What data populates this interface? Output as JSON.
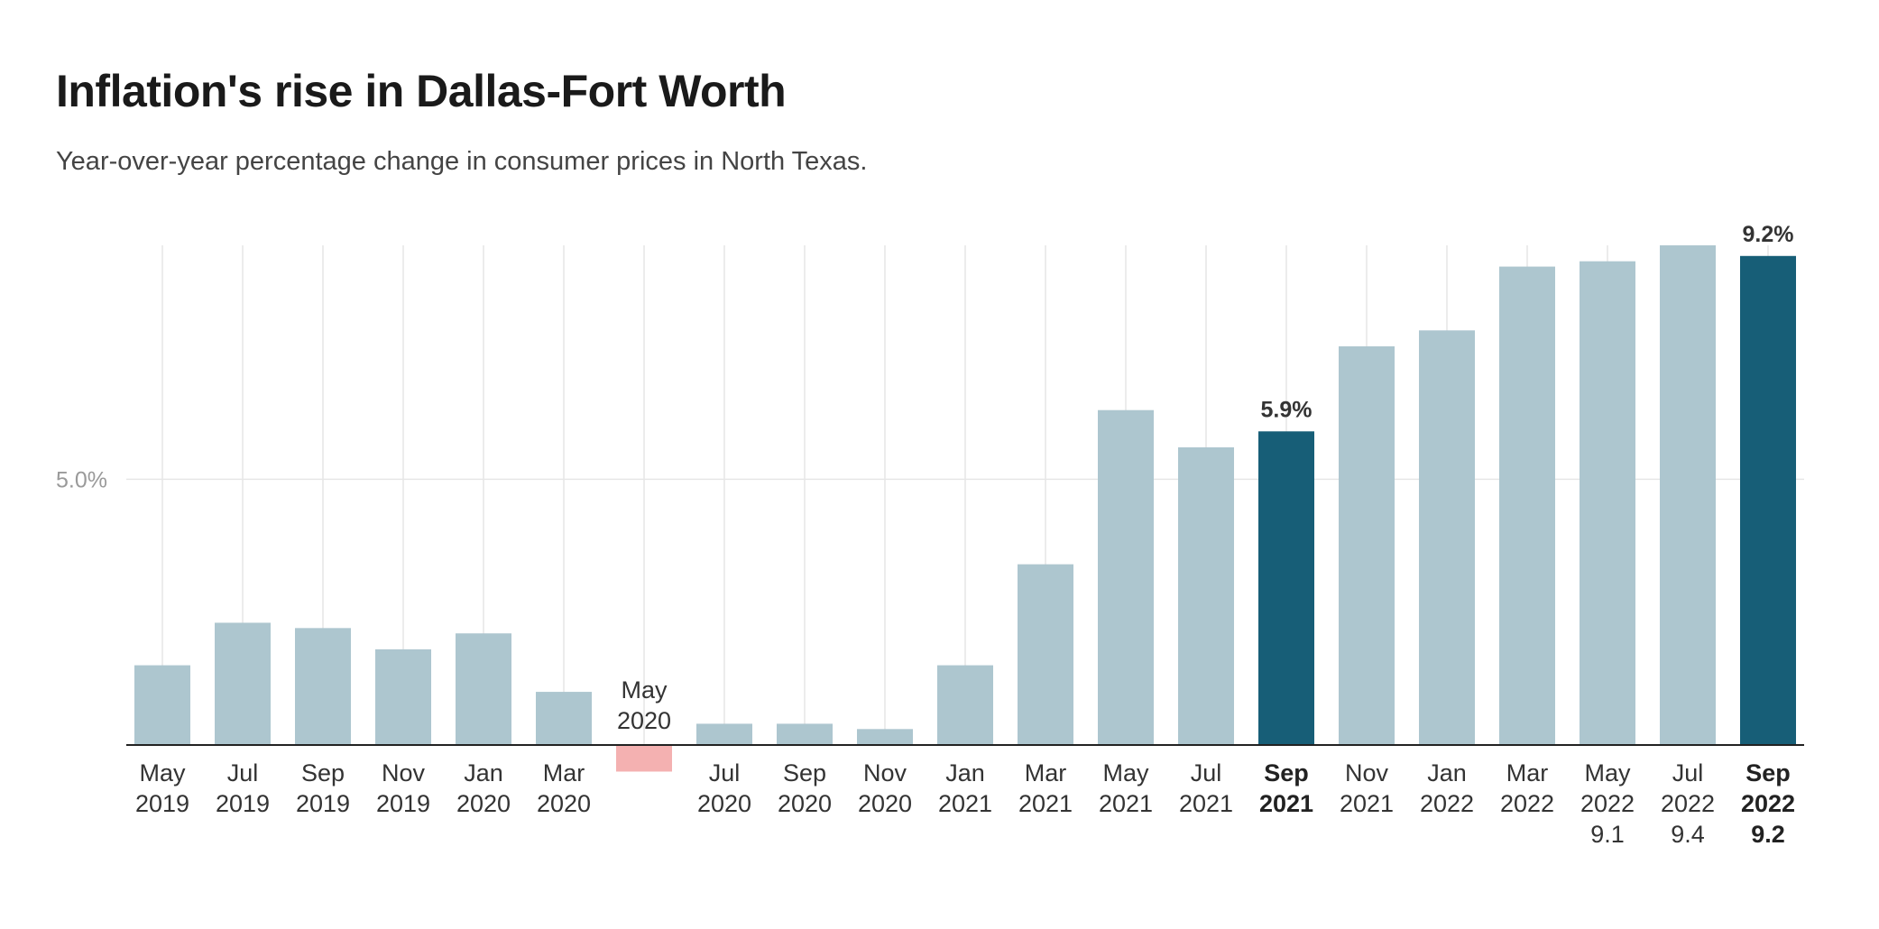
{
  "chart_data": {
    "type": "bar",
    "title": "Inflation's rise in Dallas-Fort Worth",
    "subtitle": "Year-over-year percentage change in consumer prices in North Texas.",
    "xlabel": "",
    "ylabel": "",
    "ylim": [
      0,
      9.4
    ],
    "y_ticks": [
      {
        "value": 5,
        "label": "5.0%"
      }
    ],
    "grid": {
      "vertical": true,
      "horizontal": true
    },
    "colors": {
      "default": "#adc6cf",
      "highlight": "#175e77",
      "negative": "#f4b1b1",
      "axis": "#222222",
      "grid": "#e6e6e6"
    },
    "categories": [
      {
        "month": "May",
        "year": "2019",
        "value": 1.5
      },
      {
        "month": "Jul",
        "year": "2019",
        "value": 2.3
      },
      {
        "month": "Sep",
        "year": "2019",
        "value": 2.2
      },
      {
        "month": "Nov",
        "year": "2019",
        "value": 1.8
      },
      {
        "month": "Jan",
        "year": "2020",
        "value": 2.1
      },
      {
        "month": "Mar",
        "year": "2020",
        "value": 1.0
      },
      {
        "month": "May",
        "year": "2020",
        "value": -0.5,
        "label_above": true
      },
      {
        "month": "Jul",
        "year": "2020",
        "value": 0.4
      },
      {
        "month": "Sep",
        "year": "2020",
        "value": 0.4
      },
      {
        "month": "Nov",
        "year": "2020",
        "value": 0.3
      },
      {
        "month": "Jan",
        "year": "2021",
        "value": 1.5
      },
      {
        "month": "Mar",
        "year": "2021",
        "value": 3.4
      },
      {
        "month": "May",
        "year": "2021",
        "value": 6.3
      },
      {
        "month": "Jul",
        "year": "2021",
        "value": 5.6
      },
      {
        "month": "Sep",
        "year": "2021",
        "value": 5.9,
        "highlight": true,
        "data_label": "5.9%"
      },
      {
        "month": "Nov",
        "year": "2021",
        "value": 7.5
      },
      {
        "month": "Jan",
        "year": "2022",
        "value": 7.8
      },
      {
        "month": "Mar",
        "year": "2022",
        "value": 9.0
      },
      {
        "month": "May",
        "year": "2022",
        "value": 9.1,
        "value_label": "9.1"
      },
      {
        "month": "Jul",
        "year": "2022",
        "value": 9.4,
        "value_label": "9.4"
      },
      {
        "month": "Sep",
        "year": "2022",
        "value": 9.2,
        "highlight": true,
        "data_label": "9.2%",
        "value_label": "9.2"
      }
    ]
  }
}
